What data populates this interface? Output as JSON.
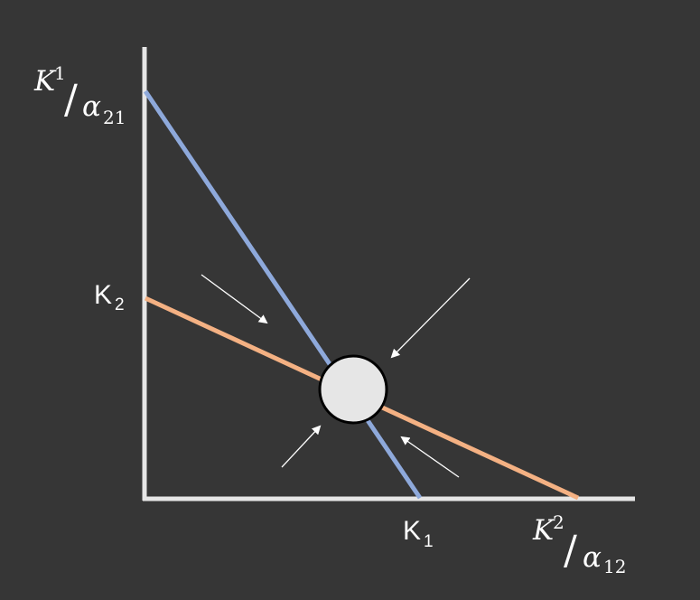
{
  "colors": {
    "background": "#363636",
    "axis": "#e6e6e6",
    "species1_isocline": "#8ea9db",
    "species2_isocline": "#f4b183",
    "equilibrium_fill": "#e6e6e6",
    "equilibrium_stroke": "#000000",
    "arrow": "#ffffff",
    "text": "#ffffff"
  },
  "labels": {
    "y_top": {
      "main": "K",
      "sub1": "1",
      "slash": "/",
      "alpha": "α",
      "sub2": "21"
    },
    "y_mid": {
      "main": "K",
      "sub": "2"
    },
    "x_mid": {
      "main": "K",
      "sub": "1"
    },
    "x_right": {
      "main": "K",
      "sub1": "2",
      "slash": "/",
      "alpha": "α",
      "sub2": "12"
    }
  }
}
